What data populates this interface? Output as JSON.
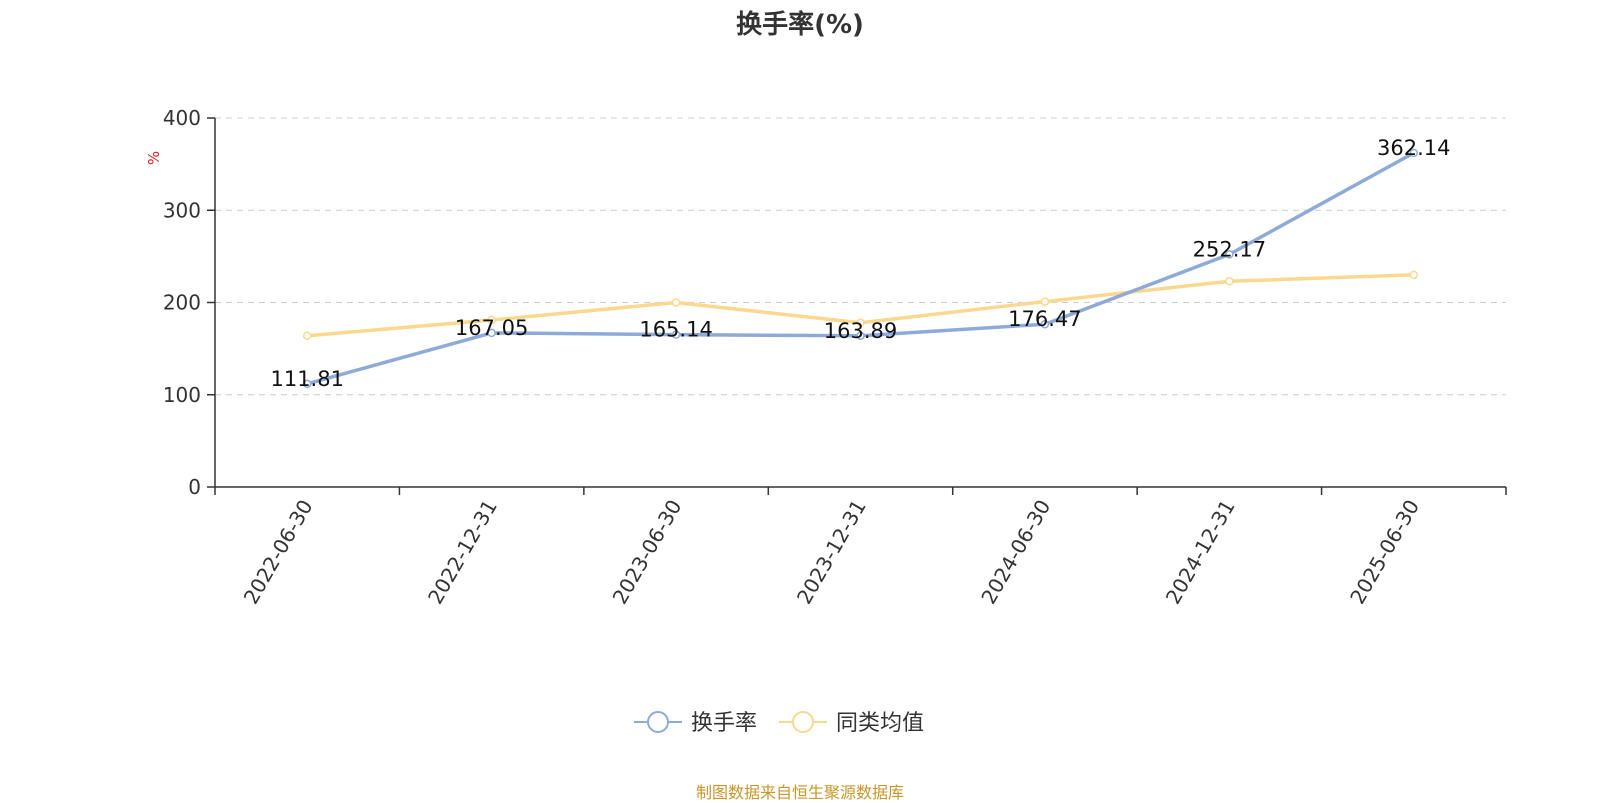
{
  "chart_data": {
    "type": "line",
    "title": "换手率(%)",
    "ylabel": "%",
    "ylim": [
      0,
      400
    ],
    "yticks": [
      0,
      100,
      200,
      300,
      400
    ],
    "grid": true,
    "legend_position": "bottom-center",
    "categories": [
      "2022-06-30",
      "2022-12-31",
      "2023-06-30",
      "2023-12-31",
      "2024-06-30",
      "2024-12-31",
      "2025-06-30"
    ],
    "series": [
      {
        "name": "换手率",
        "color": "#8eaad8",
        "values": [
          111.81,
          167.05,
          165.14,
          163.89,
          176.47,
          252.17,
          362.14
        ],
        "labels": [
          "111.81",
          "167.05",
          "165.14",
          "163.89",
          "176.47",
          "252.17",
          "362.14"
        ],
        "show_labels": true
      },
      {
        "name": "同类均值",
        "color": "#fbd88f",
        "values": [
          164,
          181,
          200,
          178,
          201,
          223,
          230
        ],
        "show_labels": false
      }
    ]
  },
  "footer": {
    "source": "制图数据来自恒生聚源数据库"
  }
}
